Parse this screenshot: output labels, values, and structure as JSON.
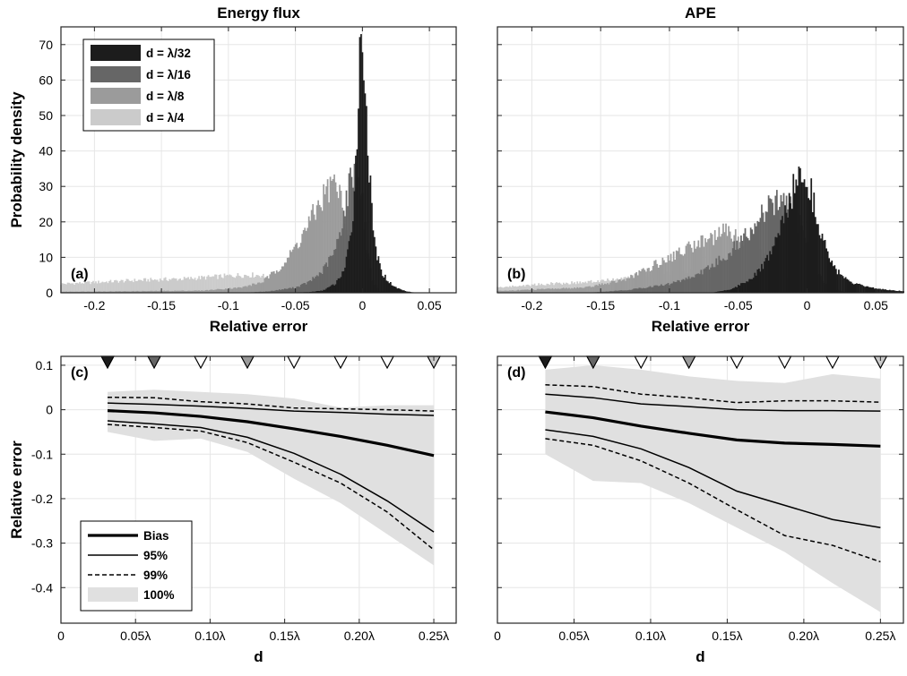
{
  "chart_data": [
    {
      "panel": "(a)",
      "type": "histogram",
      "title": "Energy flux",
      "xlabel": "Relative error",
      "ylabel": "Probability density",
      "xlim": [
        -0.225,
        0.07
      ],
      "ylim": [
        0,
        75
      ],
      "xticks": [
        -0.2,
        -0.15,
        -0.1,
        -0.05,
        0,
        0.05
      ],
      "xtick_labels": [
        "-0.2",
        "-0.15",
        "-0.1",
        "-0.05",
        "0",
        "0.05"
      ],
      "yticks": [
        0,
        10,
        20,
        30,
        40,
        50,
        60,
        70
      ],
      "ytick_labels": [
        "0",
        "10",
        "20",
        "30",
        "40",
        "50",
        "60",
        "70"
      ],
      "grid": true,
      "legend_position": "top-left",
      "series": [
        {
          "name": "d = λ/4",
          "color": "#cbcbcb",
          "range": [
            -0.225,
            0.0
          ],
          "pts": [
            [
              -0.225,
              2.5
            ],
            [
              -0.17,
              3.5
            ],
            [
              -0.13,
              4.0
            ],
            [
              -0.09,
              5.0
            ],
            [
              -0.075,
              5.0
            ],
            [
              -0.07,
              3.5
            ],
            [
              -0.06,
              2.0
            ],
            [
              -0.05,
              1.0
            ],
            [
              -0.03,
              0.2
            ],
            [
              0.0,
              0
            ]
          ]
        },
        {
          "name": "d = λ/8",
          "color": "#9b9b9b",
          "range": [
            -0.225,
            0.0
          ],
          "pts": [
            [
              -0.225,
              0.3
            ],
            [
              -0.12,
              0.6
            ],
            [
              -0.09,
              1.5
            ],
            [
              -0.075,
              3.0
            ],
            [
              -0.065,
              6.0
            ],
            [
              -0.055,
              10.0
            ],
            [
              -0.045,
              16.0
            ],
            [
              -0.035,
              23.0
            ],
            [
              -0.028,
              28.0
            ],
            [
              -0.022,
              31.0
            ],
            [
              -0.018,
              29.0
            ],
            [
              -0.013,
              21.0
            ],
            [
              -0.008,
              10.0
            ],
            [
              -0.004,
              3.0
            ],
            [
              0.0,
              0
            ]
          ]
        },
        {
          "name": "d = λ/16",
          "color": "#666666",
          "range": [
            -0.09,
            0.02
          ],
          "pts": [
            [
              -0.09,
              0
            ],
            [
              -0.07,
              0.4
            ],
            [
              -0.05,
              1.5
            ],
            [
              -0.04,
              3.0
            ],
            [
              -0.03,
              6.0
            ],
            [
              -0.02,
              12.0
            ],
            [
              -0.014,
              22.0
            ],
            [
              -0.01,
              30.0
            ],
            [
              -0.007,
              35.0
            ],
            [
              -0.004,
              35.0
            ],
            [
              -0.001,
              28.0
            ],
            [
              0.003,
              14.0
            ],
            [
              0.007,
              4.0
            ],
            [
              0.012,
              0.5
            ],
            [
              0.02,
              0
            ]
          ]
        },
        {
          "name": "d = λ/32",
          "color": "#1c1c1c",
          "range": [
            -0.06,
            0.04
          ],
          "pts": [
            [
              -0.06,
              0
            ],
            [
              -0.04,
              0.2
            ],
            [
              -0.03,
              0.6
            ],
            [
              -0.02,
              2.5
            ],
            [
              -0.013,
              7.0
            ],
            [
              -0.009,
              15.0
            ],
            [
              -0.006,
              28.0
            ],
            [
              -0.004,
              48.0
            ],
            [
              -0.002,
              65.0
            ],
            [
              0.0,
              72.0
            ],
            [
              0.002,
              62.0
            ],
            [
              0.004,
              42.0
            ],
            [
              0.007,
              22.0
            ],
            [
              0.01,
              12.0
            ],
            [
              0.014,
              6.0
            ],
            [
              0.02,
              3.0
            ],
            [
              0.025,
              1.5
            ],
            [
              0.032,
              0.5
            ],
            [
              0.04,
              0
            ]
          ]
        }
      ]
    },
    {
      "panel": "(b)",
      "type": "histogram",
      "title": "APE",
      "xlabel": "Relative error",
      "ylabel": "",
      "xlim": [
        -0.225,
        0.07
      ],
      "ylim": [
        0,
        75
      ],
      "xticks": [
        -0.2,
        -0.15,
        -0.1,
        -0.05,
        0,
        0.05
      ],
      "xtick_labels": [
        "-0.2",
        "-0.15",
        "-0.1",
        "-0.05",
        "0",
        "0.05"
      ],
      "yticks": [
        0,
        10,
        20,
        30,
        40,
        50,
        60,
        70
      ],
      "grid": true,
      "series": [
        {
          "name": "d = λ/4",
          "color": "#cbcbcb",
          "range": [
            -0.225,
            0.0
          ],
          "pts": [
            [
              -0.225,
              1.5
            ],
            [
              -0.19,
              2.5
            ],
            [
              -0.16,
              3.0
            ],
            [
              -0.13,
              4.0
            ],
            [
              -0.11,
              5.0
            ],
            [
              -0.1,
              5.5
            ],
            [
              -0.09,
              6.0
            ],
            [
              -0.07,
              5.0
            ],
            [
              -0.05,
              3.0
            ],
            [
              -0.03,
              1.0
            ],
            [
              0.0,
              0
            ]
          ]
        },
        {
          "name": "d = λ/8",
          "color": "#9b9b9b",
          "range": [
            -0.225,
            0.0
          ],
          "pts": [
            [
              -0.225,
              0.5
            ],
            [
              -0.16,
              1.5
            ],
            [
              -0.13,
              4.0
            ],
            [
              -0.11,
              8.0
            ],
            [
              -0.09,
              12.0
            ],
            [
              -0.075,
              15.0
            ],
            [
              -0.06,
              17.0
            ],
            [
              -0.045,
              15.0
            ],
            [
              -0.03,
              10.0
            ],
            [
              -0.015,
              4.0
            ],
            [
              0.0,
              0
            ]
          ]
        },
        {
          "name": "d = λ/16",
          "color": "#666666",
          "range": [
            -0.16,
            0.03
          ],
          "pts": [
            [
              -0.16,
              0
            ],
            [
              -0.13,
              0.8
            ],
            [
              -0.1,
              2.5
            ],
            [
              -0.08,
              5.0
            ],
            [
              -0.06,
              10.0
            ],
            [
              -0.045,
              16.0
            ],
            [
              -0.035,
              21.0
            ],
            [
              -0.025,
              25.0
            ],
            [
              -0.018,
              26.0
            ],
            [
              -0.01,
              24.0
            ],
            [
              -0.003,
              17.0
            ],
            [
              0.005,
              8.0
            ],
            [
              0.012,
              3.0
            ],
            [
              0.02,
              1.0
            ],
            [
              0.03,
              0
            ]
          ]
        },
        {
          "name": "d = λ/32",
          "color": "#1c1c1c",
          "range": [
            -0.07,
            0.07
          ],
          "pts": [
            [
              -0.07,
              0
            ],
            [
              -0.055,
              1.0
            ],
            [
              -0.045,
              3.0
            ],
            [
              -0.035,
              6.0
            ],
            [
              -0.028,
              10.0
            ],
            [
              -0.021,
              16.0
            ],
            [
              -0.015,
              23.0
            ],
            [
              -0.01,
              29.0
            ],
            [
              -0.006,
              33.0
            ],
            [
              -0.003,
              35.0
            ],
            [
              0.0,
              33.0
            ],
            [
              0.004,
              27.0
            ],
            [
              0.009,
              19.0
            ],
            [
              0.014,
              12.0
            ],
            [
              0.02,
              7.0
            ],
            [
              0.027,
              4.0
            ],
            [
              0.035,
              2.5
            ],
            [
              0.045,
              1.5
            ],
            [
              0.055,
              1.0
            ],
            [
              0.065,
              0.6
            ],
            [
              0.07,
              0.5
            ]
          ]
        }
      ]
    },
    {
      "panel": "(c)",
      "type": "line",
      "xlabel": "d",
      "ylabel": "Relative error",
      "xlim": [
        0,
        0.265
      ],
      "ylim": [
        -0.48,
        0.12
      ],
      "xticks": [
        0,
        0.05,
        0.1,
        0.15,
        0.2,
        0.25
      ],
      "xtick_labels": [
        "0",
        "0.05λ",
        "0.10λ",
        "0.15λ",
        "0.20λ",
        "0.25λ"
      ],
      "yticks": [
        0.1,
        0,
        -0.1,
        -0.2,
        -0.3,
        -0.4
      ],
      "ytick_labels": [
        "0.1",
        "0",
        "-0.1",
        "-0.2",
        "-0.3",
        "-0.4"
      ],
      "grid": true,
      "legend_position": "bottom-left",
      "x": [
        0.03125,
        0.0625,
        0.09375,
        0.125,
        0.15625,
        0.1875,
        0.21875,
        0.25
      ],
      "shaded_100": {
        "upper": [
          0.04,
          0.045,
          0.04,
          0.035,
          0.025,
          0.005,
          0.01,
          0.01
        ],
        "lower": [
          -0.05,
          -0.07,
          -0.065,
          -0.095,
          -0.155,
          -0.21,
          -0.28,
          -0.35
        ]
      },
      "series": [
        {
          "name": "Bias",
          "style": "thick",
          "values": [
            -0.002,
            -0.007,
            -0.015,
            -0.027,
            -0.043,
            -0.06,
            -0.08,
            -0.103
          ]
        },
        {
          "name": "95%",
          "style": "thin",
          "values": [
            0.015,
            0.012,
            0.008,
            0.003,
            -0.003,
            -0.006,
            -0.01,
            -0.013
          ]
        },
        {
          "name": "95%",
          "style": "thin",
          "values": [
            -0.025,
            -0.032,
            -0.04,
            -0.062,
            -0.098,
            -0.145,
            -0.205,
            -0.275
          ]
        },
        {
          "name": "99%",
          "style": "dashed",
          "values": [
            0.028,
            0.027,
            0.018,
            0.013,
            0.004,
            0.002,
            0.0,
            -0.003
          ]
        },
        {
          "name": "99%",
          "style": "dashed",
          "values": [
            -0.033,
            -0.04,
            -0.048,
            -0.074,
            -0.118,
            -0.165,
            -0.23,
            -0.315
          ]
        }
      ],
      "markers": {
        "x": [
          0.03125,
          0.0625,
          0.09375,
          0.125,
          0.15625,
          0.1875,
          0.21875,
          0.25
        ],
        "fills": [
          "#1c1c1c",
          "#666666",
          "#ffffff",
          "#9b9b9b",
          "#ffffff",
          "#ffffff",
          "#ffffff",
          "#cbcbcb"
        ]
      },
      "legend": [
        {
          "label": "Bias",
          "style": "thick"
        },
        {
          "label": "95%",
          "style": "thin"
        },
        {
          "label": "99%",
          "style": "dashed"
        },
        {
          "label": "100%",
          "style": "patch"
        }
      ]
    },
    {
      "panel": "(d)",
      "type": "line",
      "xlabel": "d",
      "ylabel": "",
      "xlim": [
        0,
        0.265
      ],
      "ylim": [
        -0.48,
        0.12
      ],
      "xticks": [
        0,
        0.05,
        0.1,
        0.15,
        0.2,
        0.25
      ],
      "xtick_labels": [
        "0",
        "0.05λ",
        "0.10λ",
        "0.15λ",
        "0.20λ",
        "0.25λ"
      ],
      "yticks": [
        0.1,
        0,
        -0.1,
        -0.2,
        -0.3,
        -0.4
      ],
      "grid": true,
      "x": [
        0.03125,
        0.0625,
        0.09375,
        0.125,
        0.15625,
        0.1875,
        0.21875,
        0.25
      ],
      "shaded_100": {
        "upper": [
          0.09,
          0.1,
          0.09,
          0.075,
          0.065,
          0.06,
          0.08,
          0.07
        ],
        "lower": [
          -0.1,
          -0.16,
          -0.165,
          -0.21,
          -0.265,
          -0.32,
          -0.39,
          -0.455
        ]
      },
      "series": [
        {
          "name": "Bias",
          "style": "thick",
          "values": [
            -0.005,
            -0.018,
            -0.037,
            -0.053,
            -0.068,
            -0.075,
            -0.078,
            -0.082
          ]
        },
        {
          "name": "95%",
          "style": "thin",
          "values": [
            0.035,
            0.027,
            0.013,
            0.007,
            0.0,
            -0.002,
            -0.002,
            -0.003
          ]
        },
        {
          "name": "95%",
          "style": "thin",
          "values": [
            -0.045,
            -0.06,
            -0.088,
            -0.13,
            -0.183,
            -0.215,
            -0.247,
            -0.265
          ]
        },
        {
          "name": "99%",
          "style": "dashed",
          "values": [
            0.056,
            0.052,
            0.035,
            0.027,
            0.016,
            0.02,
            0.02,
            0.017
          ]
        },
        {
          "name": "99%",
          "style": "dashed",
          "values": [
            -0.065,
            -0.08,
            -0.115,
            -0.165,
            -0.225,
            -0.283,
            -0.305,
            -0.342
          ]
        }
      ],
      "markers": {
        "x": [
          0.03125,
          0.0625,
          0.09375,
          0.125,
          0.15625,
          0.1875,
          0.21875,
          0.25
        ],
        "fills": [
          "#1c1c1c",
          "#666666",
          "#ffffff",
          "#9b9b9b",
          "#ffffff",
          "#ffffff",
          "#ffffff",
          "#cbcbcb"
        ]
      }
    }
  ]
}
